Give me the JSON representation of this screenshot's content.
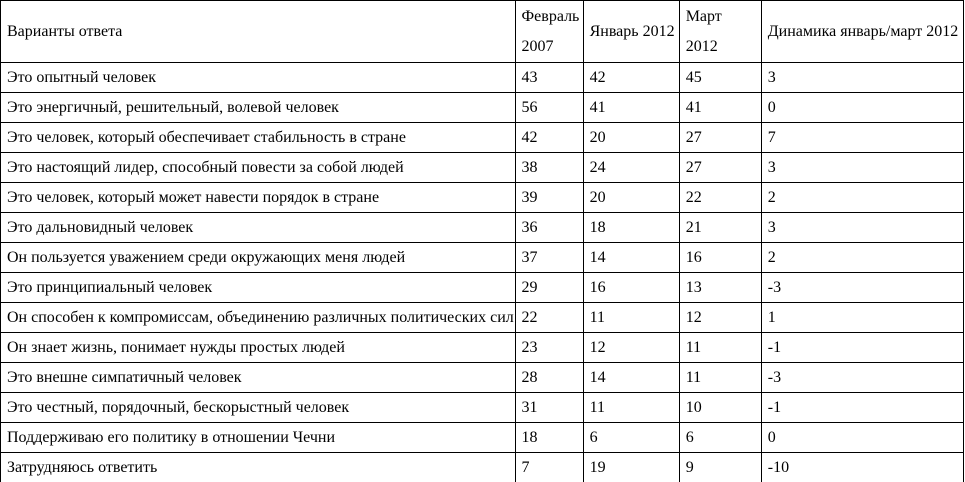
{
  "table": {
    "columns": [
      "Варианты ответа",
      "Февраль 2007",
      "Январь 2012",
      "Март 2012",
      "Динамика январь/март 2012"
    ],
    "rows": [
      {
        "label": "Это опытный человек",
        "values": [
          "43",
          "42",
          "45",
          "3"
        ]
      },
      {
        "label": "Это энергичный, решительный, волевой человек",
        "values": [
          "56",
          "41",
          "41",
          "0"
        ]
      },
      {
        "label": "Это человек, который обеспечивает стабильность в стране",
        "values": [
          "42",
          "20",
          "27",
          "7"
        ]
      },
      {
        "label": "Это настоящий лидер, способный повести за собой людей",
        "values": [
          "38",
          "24",
          "27",
          "3"
        ]
      },
      {
        "label": "Это человек, который может навести порядок в стране",
        "values": [
          "39",
          "20",
          "22",
          "2"
        ]
      },
      {
        "label": "Это дальновидный человек",
        "values": [
          "36",
          "18",
          "21",
          "3"
        ]
      },
      {
        "label": "Он пользуется уважением среди окружающих меня людей",
        "values": [
          "37",
          "14",
          "16",
          "2"
        ]
      },
      {
        "label": "Это принципиальный человек",
        "values": [
          "29",
          "16",
          "13",
          "-3"
        ]
      },
      {
        "label": "Он способен к компромиссам, объединению различных политических сил",
        "values": [
          "22",
          "11",
          "12",
          "1"
        ]
      },
      {
        "label": "Он знает жизнь, понимает нужды простых людей",
        "values": [
          "23",
          "12",
          "11",
          "-1"
        ]
      },
      {
        "label": "Это внешне симпатичный человек",
        "values": [
          "28",
          "14",
          "11",
          "-3"
        ]
      },
      {
        "label": "Это честный, порядочный, бескорыстный человек",
        "values": [
          "31",
          "11",
          "10",
          "-1"
        ]
      },
      {
        "label": "Поддерживаю его политику в отношении Чечни",
        "values": [
          "18",
          "6",
          "6",
          "0"
        ]
      },
      {
        "label": "Затрудняюсь ответить",
        "values": [
          "7",
          "19",
          "9",
          "-10"
        ]
      }
    ]
  }
}
